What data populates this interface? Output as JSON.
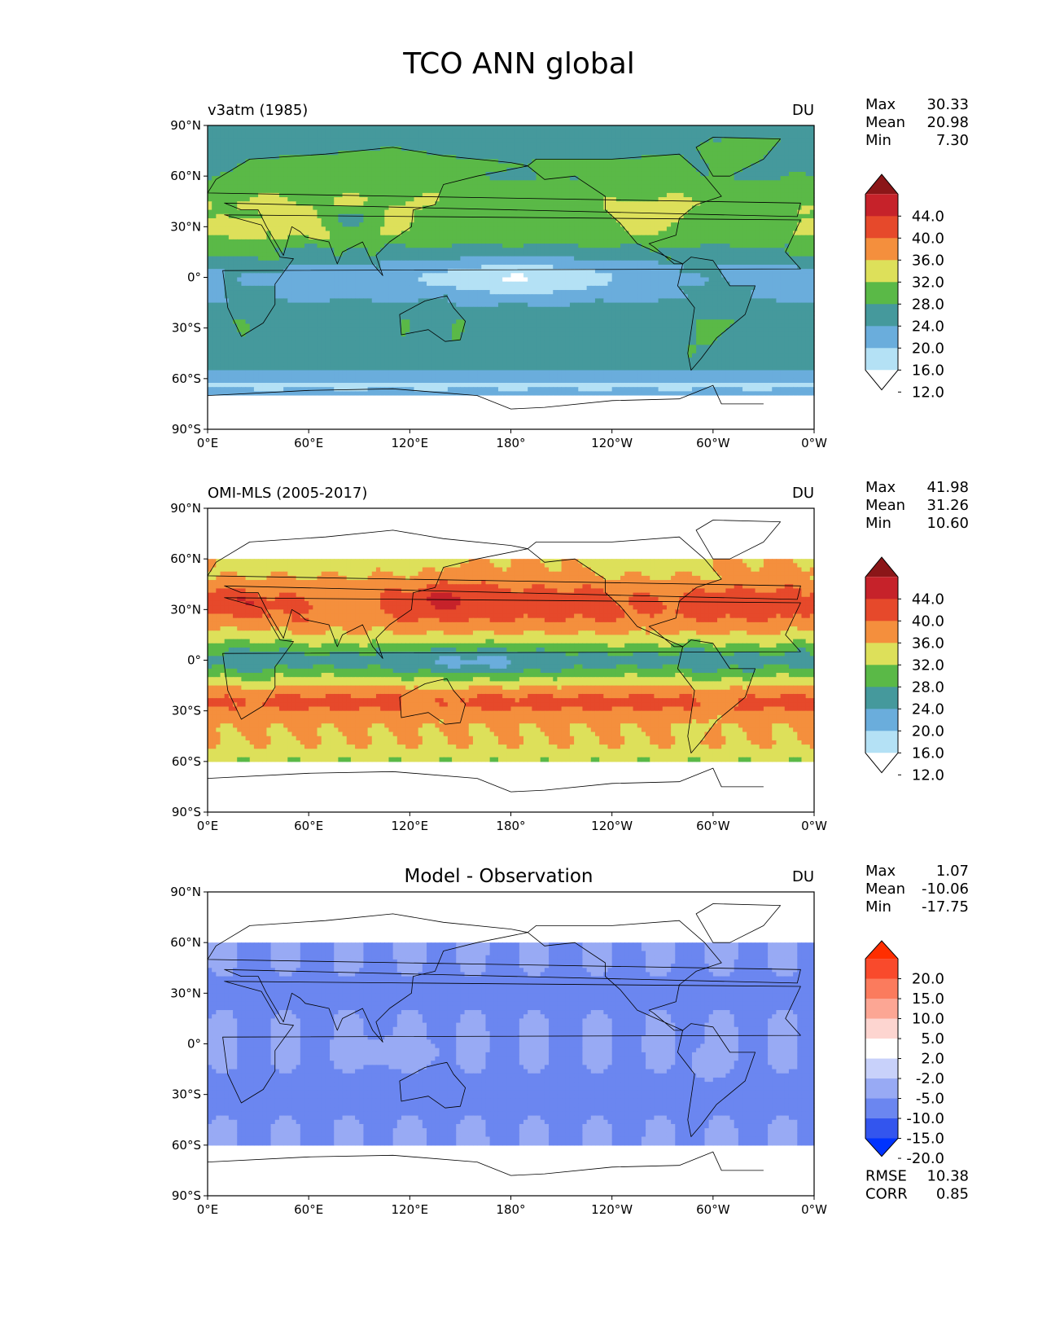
{
  "figure": {
    "title": "TCO ANN global"
  },
  "axes": {
    "lat_labels": [
      "90°N",
      "60°N",
      "30°N",
      "0°",
      "30°S",
      "60°S",
      "90°S"
    ],
    "lon_labels": [
      "0°E",
      "60°E",
      "120°E",
      "180°",
      "120°W",
      "60°W",
      "0°W"
    ]
  },
  "panels": [
    {
      "left_title": "v3atm (1985)",
      "center_title": "",
      "units": "DU",
      "stats": [
        {
          "label": "Max",
          "value": "30.33"
        },
        {
          "label": "Mean",
          "value": "20.98"
        },
        {
          "label": "Min",
          "value": "7.30"
        }
      ],
      "colorbar": {
        "labels": [
          "44.0",
          "40.0",
          "36.0",
          "32.0",
          "28.0",
          "24.0",
          "20.0",
          "16.0",
          "12.0"
        ],
        "colors": [
          "#ffffff",
          "#b4e1f5",
          "#6aaddc",
          "#45999c",
          "#5ab947",
          "#dde05a",
          "#f48f3d",
          "#e6492b",
          "#c6222a",
          "#8b1618"
        ]
      },
      "field": "model",
      "footer": []
    },
    {
      "left_title": "OMI-MLS (2005-2017)",
      "center_title": "",
      "units": "DU",
      "stats": [
        {
          "label": "Max",
          "value": "41.98"
        },
        {
          "label": "Mean",
          "value": "31.26"
        },
        {
          "label": "Min",
          "value": "10.60"
        }
      ],
      "colorbar": {
        "labels": [
          "44.0",
          "40.0",
          "36.0",
          "32.0",
          "28.0",
          "24.0",
          "20.0",
          "16.0",
          "12.0"
        ],
        "colors": [
          "#ffffff",
          "#b4e1f5",
          "#6aaddc",
          "#45999c",
          "#5ab947",
          "#dde05a",
          "#f48f3d",
          "#e6492b",
          "#c6222a",
          "#8b1618"
        ]
      },
      "field": "obs",
      "footer": []
    },
    {
      "left_title": "",
      "center_title": "Model - Observation",
      "units": "DU",
      "stats": [
        {
          "label": "Max",
          "value": "1.07"
        },
        {
          "label": "Mean",
          "value": "-10.06"
        },
        {
          "label": "Min",
          "value": "-17.75"
        }
      ],
      "colorbar": {
        "labels": [
          "20.0",
          "15.0",
          "10.0",
          "5.0",
          "2.0",
          "-2.0",
          "-5.0",
          "-10.0",
          "-15.0",
          "-20.0"
        ],
        "colors": [
          "#0033ff",
          "#3355ee",
          "#6b86f0",
          "#98aaf4",
          "#c8d1fa",
          "#ffffff",
          "#fdd5d0",
          "#fca694",
          "#fb7b5d",
          "#f94a2c",
          "#ff2e00"
        ]
      },
      "field": "diff",
      "footer": [
        {
          "label": "RMSE",
          "value": "10.38"
        },
        {
          "label": "CORR",
          "value": "0.85"
        }
      ]
    }
  ]
}
